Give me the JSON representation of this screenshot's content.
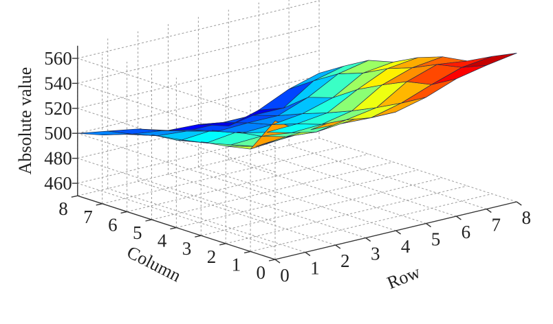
{
  "chart_data": {
    "type": "surface",
    "title": "",
    "xlabel": "Row",
    "ylabel": "Column",
    "zlabel": "Absolute  value",
    "x": [
      0,
      1,
      2,
      3,
      4,
      5,
      6,
      7,
      8
    ],
    "y": [
      0,
      1,
      2,
      3,
      4,
      5,
      6,
      7,
      8
    ],
    "x_ticks": [
      "0",
      "1",
      "2",
      "3",
      "4",
      "5",
      "6",
      "7",
      "8"
    ],
    "y_ticks": [
      "0",
      "1",
      "2",
      "3",
      "4",
      "5",
      "6",
      "7",
      "8"
    ],
    "z_ticks": [
      "460",
      "480",
      "500",
      "520",
      "540",
      "560"
    ],
    "zlim": [
      450,
      570
    ],
    "grid": true,
    "colormap": "jet",
    "z": [
      [
        561,
        532,
        528,
        525,
        520,
        518,
        512,
        505,
        500
      ],
      [
        546,
        534,
        522,
        517,
        512,
        508,
        505,
        500,
        496
      ],
      [
        550,
        536,
        524,
        518,
        515,
        510,
        503,
        497,
        492
      ],
      [
        548,
        535,
        522,
        515,
        509,
        502,
        497,
        492,
        485
      ],
      [
        545,
        534,
        526,
        516,
        510,
        503,
        498,
        492,
        484
      ],
      [
        551,
        540,
        530,
        521,
        513,
        506,
        498,
        492,
        477
      ],
      [
        560,
        549,
        545,
        536,
        526,
        513,
        507,
        492,
        484
      ],
      [
        565,
        557,
        553,
        544,
        537,
        527,
        520,
        508,
        495
      ],
      [
        569,
        560,
        550,
        547,
        540,
        530,
        525,
        514,
        502
      ]
    ]
  }
}
